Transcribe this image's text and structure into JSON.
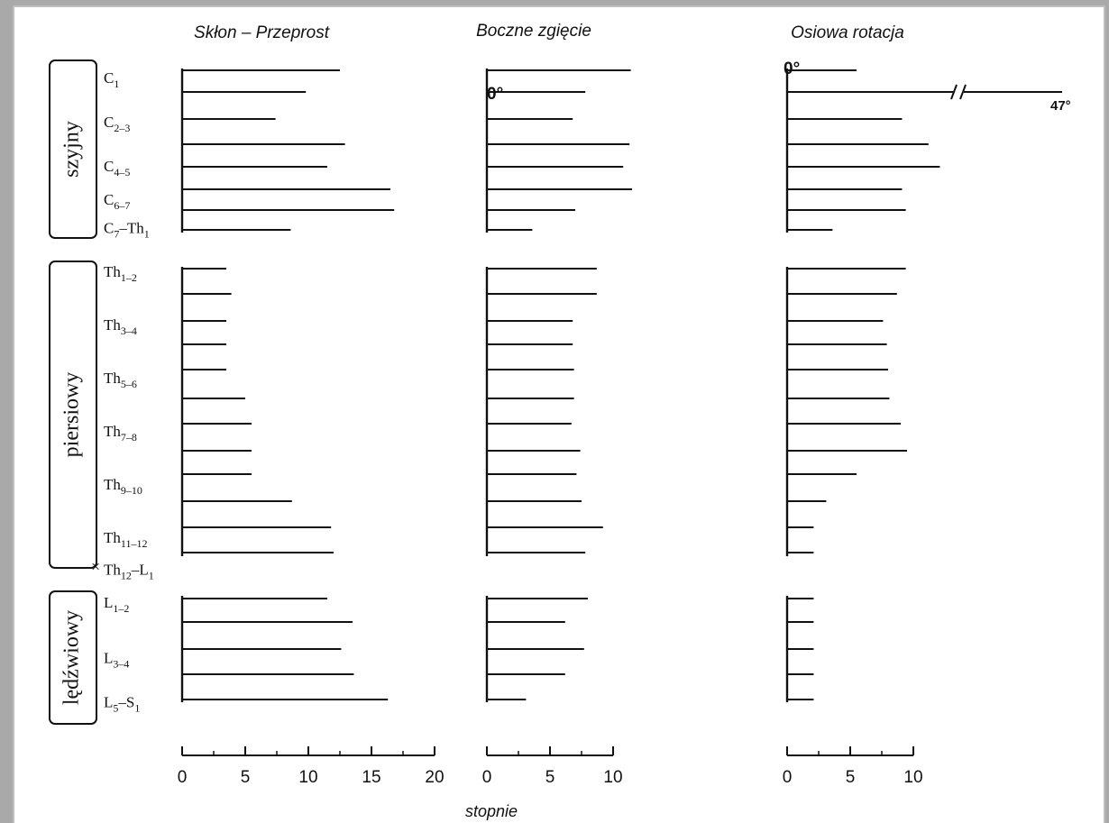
{
  "chart_data": {
    "type": "bar",
    "orientation": "horizontal",
    "xlabel": "stopnie",
    "panels": [
      {
        "id": "flex",
        "title": "Skłon – Przeprost",
        "xlim": [
          0,
          20
        ],
        "ticks": [
          "0",
          "5",
          "10",
          "15",
          "20"
        ]
      },
      {
        "id": "lat",
        "title": "Boczne zgięcie",
        "xlim": [
          0,
          10
        ],
        "ticks": [
          "0",
          "5",
          "10"
        ]
      },
      {
        "id": "rot",
        "title": "Osiowa rotacja",
        "xlim": [
          0,
          10
        ],
        "ticks": [
          "0",
          "5",
          "10"
        ]
      }
    ],
    "groups": [
      {
        "id": "cervical",
        "name": "szyjny",
        "labels": [
          {
            "pos": 0,
            "main": "C",
            "sub": "1"
          },
          {
            "pos": 2,
            "main": "C",
            "sub": "2–3"
          },
          {
            "pos": 4,
            "main": "C",
            "sub": "4–5"
          },
          {
            "pos": 5.5,
            "main": "C",
            "sub": "6–7"
          },
          {
            "pos": 6.8,
            "main": "C",
            "sub": "7",
            "main2": "–Th",
            "sub2": "1"
          }
        ],
        "annotations": [
          {
            "panel": "lat",
            "text": "0°"
          },
          {
            "panel": "rot",
            "text": "0°"
          },
          {
            "panel": "rot",
            "text": "47°"
          }
        ],
        "flex": [
          12.5,
          9.8,
          7.4,
          12.9,
          11.5,
          16.5,
          16.8,
          8.6
        ],
        "lat": [
          11.4,
          7.8,
          6.8,
          11.3,
          10.8,
          11.5,
          7.0,
          3.6
        ],
        "rot": [
          5.5,
          20.0,
          9.1,
          11.2,
          12.1,
          9.1,
          9.4,
          3.6
        ]
      },
      {
        "id": "thoracic",
        "name": "piersiowy",
        "labels": [
          {
            "pos": 0,
            "main": "Th",
            "sub": "1–2"
          },
          {
            "pos": 2,
            "main": "Th",
            "sub": "3–4"
          },
          {
            "pos": 4,
            "main": "Th",
            "sub": "5–6"
          },
          {
            "pos": 6,
            "main": "Th",
            "sub": "7–8"
          },
          {
            "pos": 8,
            "main": "Th",
            "sub": "9–10"
          },
          {
            "pos": 10,
            "main": "Th",
            "sub": "11–12"
          },
          {
            "pos": 11.2,
            "main": "Th",
            "sub": "12",
            "main2": "–L",
            "sub2": "1",
            "marker": "×"
          }
        ],
        "flex": [
          3.5,
          3.9,
          3.5,
          3.5,
          3.5,
          5.0,
          5.5,
          5.5,
          5.5,
          8.7,
          11.8,
          12.0
        ],
        "lat": [
          8.7,
          8.7,
          6.8,
          6.8,
          6.9,
          6.9,
          6.7,
          7.4,
          7.1,
          7.5,
          9.2,
          7.8
        ],
        "rot": [
          9.4,
          8.7,
          7.6,
          7.9,
          8.0,
          8.1,
          9.0,
          9.5,
          5.5,
          3.1,
          2.1,
          2.1
        ]
      },
      {
        "id": "lumbar",
        "name": "lędźwiowy",
        "labels": [
          {
            "pos": 0,
            "main": "L",
            "sub": "1–2"
          },
          {
            "pos": 2.5,
            "main": "L",
            "sub": "3–4"
          },
          {
            "pos": 4.5,
            "main": "L",
            "sub": "5",
            "main2": "–S",
            "sub2": "1"
          }
        ],
        "flex": [
          11.5,
          13.5,
          12.6,
          13.6,
          16.3
        ],
        "lat": [
          8.0,
          6.2,
          7.7,
          6.2,
          3.1
        ],
        "rot": [
          2.1,
          2.1,
          2.1,
          2.1,
          2.1
        ]
      }
    ]
  }
}
